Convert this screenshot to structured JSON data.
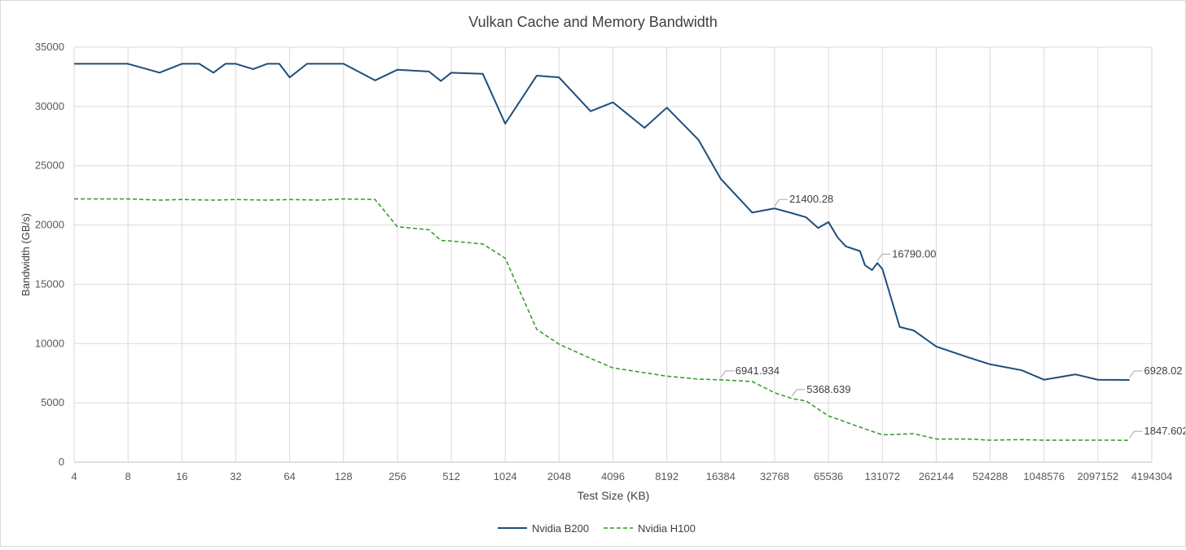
{
  "chart_data": {
    "type": "line",
    "title": "Vulkan Cache and Memory Bandwidth",
    "xlabel": "Test Size (KB)",
    "ylabel": "Bandwidth (GB/s)",
    "xscale": "log2",
    "xlim": [
      4,
      4194304
    ],
    "ylim": [
      0,
      35000
    ],
    "grid": true,
    "legend_position": "bottom",
    "xticks": [
      4,
      8,
      16,
      32,
      64,
      128,
      256,
      512,
      1024,
      2048,
      4096,
      8192,
      16384,
      32768,
      65536,
      131072,
      262144,
      524288,
      1048576,
      2097152,
      4194304
    ],
    "xtick_labels": [
      "4",
      "8",
      "16",
      "32",
      "64",
      "128",
      "256",
      "512",
      "1024",
      "2048",
      "4096",
      "8192",
      "16384",
      "32768",
      "65536",
      "131072",
      "262144",
      "524288",
      "1048576",
      "2097152",
      "4194304"
    ],
    "yticks": [
      0,
      5000,
      10000,
      15000,
      20000,
      25000,
      30000,
      35000
    ],
    "ytick_labels": [
      "0",
      "5000",
      "10000",
      "15000",
      "20000",
      "25000",
      "30000",
      "35000"
    ],
    "series": [
      {
        "name": "Nvidia B200",
        "color": "#1f4e79",
        "style": "solid",
        "points": [
          [
            4,
            33600
          ],
          [
            6,
            33600
          ],
          [
            8,
            33600
          ],
          [
            12,
            32850
          ],
          [
            16,
            33600
          ],
          [
            20,
            33600
          ],
          [
            24,
            32850
          ],
          [
            28,
            33600
          ],
          [
            32,
            33600
          ],
          [
            40,
            33150
          ],
          [
            48,
            33600
          ],
          [
            56,
            33600
          ],
          [
            64,
            32450
          ],
          [
            80,
            33600
          ],
          [
            96,
            33600
          ],
          [
            128,
            33600
          ],
          [
            192,
            32200
          ],
          [
            256,
            33100
          ],
          [
            384,
            32950
          ],
          [
            448,
            32150
          ],
          [
            512,
            32850
          ],
          [
            768,
            32750
          ],
          [
            1024,
            28550
          ],
          [
            1536,
            32600
          ],
          [
            2048,
            32450
          ],
          [
            3072,
            29600
          ],
          [
            4096,
            30350
          ],
          [
            6144,
            28200
          ],
          [
            8192,
            29900
          ],
          [
            12288,
            27200
          ],
          [
            16384,
            23900
          ],
          [
            24576,
            21050
          ],
          [
            32768,
            21400.28
          ],
          [
            40960,
            21000
          ],
          [
            49152,
            20650
          ],
          [
            57344,
            19750
          ],
          [
            65536,
            20250
          ],
          [
            73728,
            18950
          ],
          [
            81920,
            18200
          ],
          [
            98304,
            17800
          ],
          [
            104857,
            16600
          ],
          [
            114688,
            16200
          ],
          [
            122880,
            16790.0
          ],
          [
            131072,
            16300
          ],
          [
            163840,
            11400
          ],
          [
            196608,
            11100
          ],
          [
            262144,
            9750
          ],
          [
            393216,
            8850
          ],
          [
            524288,
            8250
          ],
          [
            786432,
            7750
          ],
          [
            1048576,
            6950
          ],
          [
            1572864,
            7400
          ],
          [
            2097152,
            6950
          ],
          [
            3145728,
            6928.02
          ]
        ],
        "annotations": [
          {
            "x": 32768,
            "y": 21400.28,
            "label": "21400.28"
          },
          {
            "x": 122880,
            "y": 16790.0,
            "label": "16790.00"
          },
          {
            "x": 3145728,
            "y": 6928.02,
            "label": "6928.02"
          }
        ]
      },
      {
        "name": "Nvidia H100",
        "color": "#2e9a23",
        "style": "dashed",
        "points": [
          [
            4,
            22200
          ],
          [
            8,
            22200
          ],
          [
            12,
            22100
          ],
          [
            16,
            22150
          ],
          [
            24,
            22100
          ],
          [
            32,
            22150
          ],
          [
            48,
            22100
          ],
          [
            64,
            22150
          ],
          [
            96,
            22100
          ],
          [
            128,
            22200
          ],
          [
            192,
            22150
          ],
          [
            256,
            19850
          ],
          [
            384,
            19600
          ],
          [
            448,
            18700
          ],
          [
            512,
            18650
          ],
          [
            768,
            18400
          ],
          [
            1024,
            17200
          ],
          [
            1536,
            11200
          ],
          [
            2048,
            9950
          ],
          [
            3072,
            8750
          ],
          [
            4096,
            7950
          ],
          [
            8192,
            7250
          ],
          [
            12288,
            7000
          ],
          [
            16384,
            6941.934
          ],
          [
            24576,
            6800
          ],
          [
            32768,
            5850
          ],
          [
            40960,
            5368.639
          ],
          [
            49152,
            5150
          ],
          [
            65536,
            3900
          ],
          [
            98304,
            2950
          ],
          [
            131072,
            2300
          ],
          [
            196608,
            2400
          ],
          [
            262144,
            1950
          ],
          [
            393216,
            1950
          ],
          [
            524288,
            1850
          ],
          [
            786432,
            1900
          ],
          [
            1048576,
            1850
          ],
          [
            2097152,
            1850
          ],
          [
            3145728,
            1847.602
          ]
        ],
        "annotations": [
          {
            "x": 16384,
            "y": 6941.934,
            "label": "6941.934"
          },
          {
            "x": 40960,
            "y": 5368.639,
            "label": "5368.639"
          },
          {
            "x": 3145728,
            "y": 1847.602,
            "label": "1847.602"
          }
        ]
      }
    ]
  }
}
